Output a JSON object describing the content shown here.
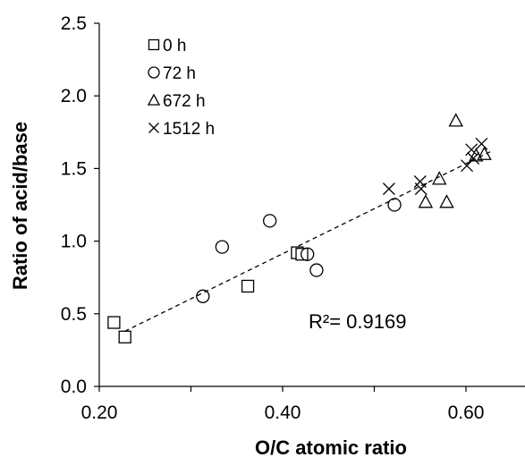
{
  "chart_data": {
    "type": "scatter",
    "xlabel": "O/C atomic ratio",
    "ylabel": "Ratio of acid/base",
    "xlim": [
      0.2,
      0.7
    ],
    "ylim": [
      0.0,
      2.5
    ],
    "xticks": [
      0.2,
      0.3,
      0.4,
      0.5,
      0.6,
      0.7
    ],
    "xtick_labels": [
      "0.20",
      "",
      "0.40",
      "",
      "0.60",
      ""
    ],
    "yticks": [
      0.0,
      0.5,
      1.0,
      1.5,
      2.0,
      2.5
    ],
    "ytick_labels": [
      "0.0",
      "0.5",
      "1.0",
      "1.5",
      "2.0",
      "2.5"
    ],
    "grid": false,
    "legend_position": "top-left",
    "series": [
      {
        "name": "0 h",
        "marker": "square",
        "x": [
          0.216,
          0.228,
          0.362,
          0.416,
          0.421
        ],
        "y": [
          0.44,
          0.34,
          0.69,
          0.92,
          0.91
        ]
      },
      {
        "name": "72 h",
        "marker": "circle",
        "x": [
          0.313,
          0.334,
          0.386,
          0.427,
          0.437,
          0.522
        ],
        "y": [
          0.62,
          0.96,
          1.14,
          0.91,
          0.8,
          1.25
        ]
      },
      {
        "name": "672 h",
        "marker": "triangle",
        "x": [
          0.556,
          0.571,
          0.579,
          0.589,
          0.611,
          0.62
        ],
        "y": [
          1.27,
          1.43,
          1.27,
          1.83,
          1.59,
          1.6
        ]
      },
      {
        "name": "1512 h",
        "marker": "cross",
        "x": [
          0.516,
          0.55,
          0.551,
          0.601,
          0.606,
          0.608,
          0.617
        ],
        "y": [
          1.36,
          1.41,
          1.36,
          1.52,
          1.63,
          1.57,
          1.67
        ]
      }
    ],
    "trendline": {
      "style": "dashed",
      "x": [
        0.228,
        0.628
      ],
      "y": [
        0.38,
        1.62
      ]
    },
    "annotation": "R²= 0.9169"
  }
}
